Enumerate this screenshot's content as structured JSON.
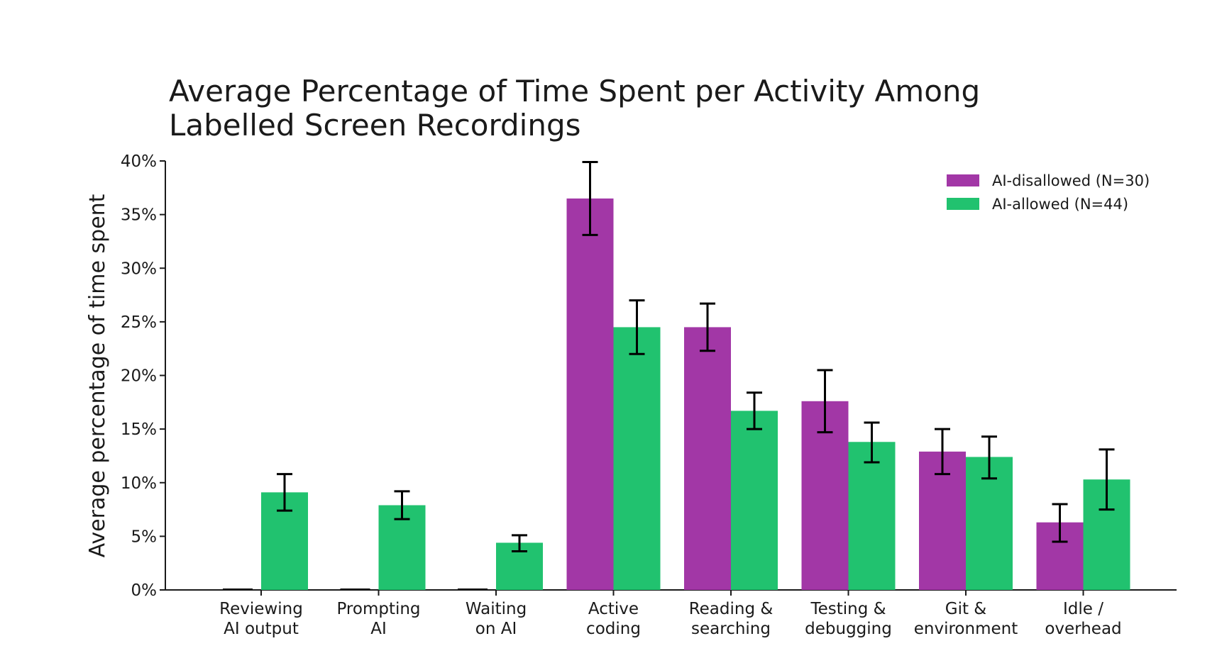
{
  "chart_data": {
    "type": "bar",
    "title_lines": [
      "Average Percentage of Time Spent per Activity Among",
      "Labelled Screen Recordings"
    ],
    "xlabel": "",
    "ylabel": "Average percentage of time spent",
    "ylim": [
      0,
      40
    ],
    "y_ticks": [
      0,
      5,
      10,
      15,
      20,
      25,
      30,
      35,
      40
    ],
    "y_tick_labels": [
      "0%",
      "5%",
      "10%",
      "15%",
      "20%",
      "25%",
      "30%",
      "35%",
      "40%"
    ],
    "category_lines": [
      [
        "Reviewing",
        "AI output"
      ],
      [
        "Prompting",
        "AI"
      ],
      [
        "Waiting",
        "on AI"
      ],
      [
        "Active",
        "coding"
      ],
      [
        "Reading &",
        "searching"
      ],
      [
        "Testing &",
        "debugging"
      ],
      [
        "Git &",
        "environment"
      ],
      [
        "Idle /",
        "overhead"
      ]
    ],
    "series": [
      {
        "name": "AI-disallowed (N=30)",
        "color": "#A237A6",
        "values": [
          0,
          0,
          0,
          36.5,
          24.5,
          17.6,
          12.9,
          6.3
        ],
        "err_low": [
          0,
          0,
          0,
          33.1,
          22.3,
          14.7,
          10.8,
          4.5
        ],
        "err_high": [
          0,
          0,
          0,
          39.9,
          26.7,
          20.5,
          15.0,
          8.0
        ]
      },
      {
        "name": "AI-allowed (N=44)",
        "color": "#21C26F",
        "values": [
          9.1,
          7.9,
          4.4,
          24.5,
          16.7,
          13.8,
          12.4,
          10.3
        ],
        "err_low": [
          7.4,
          6.6,
          3.6,
          22.0,
          15.0,
          11.9,
          10.4,
          7.5
        ],
        "err_high": [
          10.8,
          9.2,
          5.1,
          27.0,
          18.4,
          15.6,
          14.3,
          13.1
        ]
      }
    ],
    "legend_position": "top-right",
    "grid": false
  }
}
